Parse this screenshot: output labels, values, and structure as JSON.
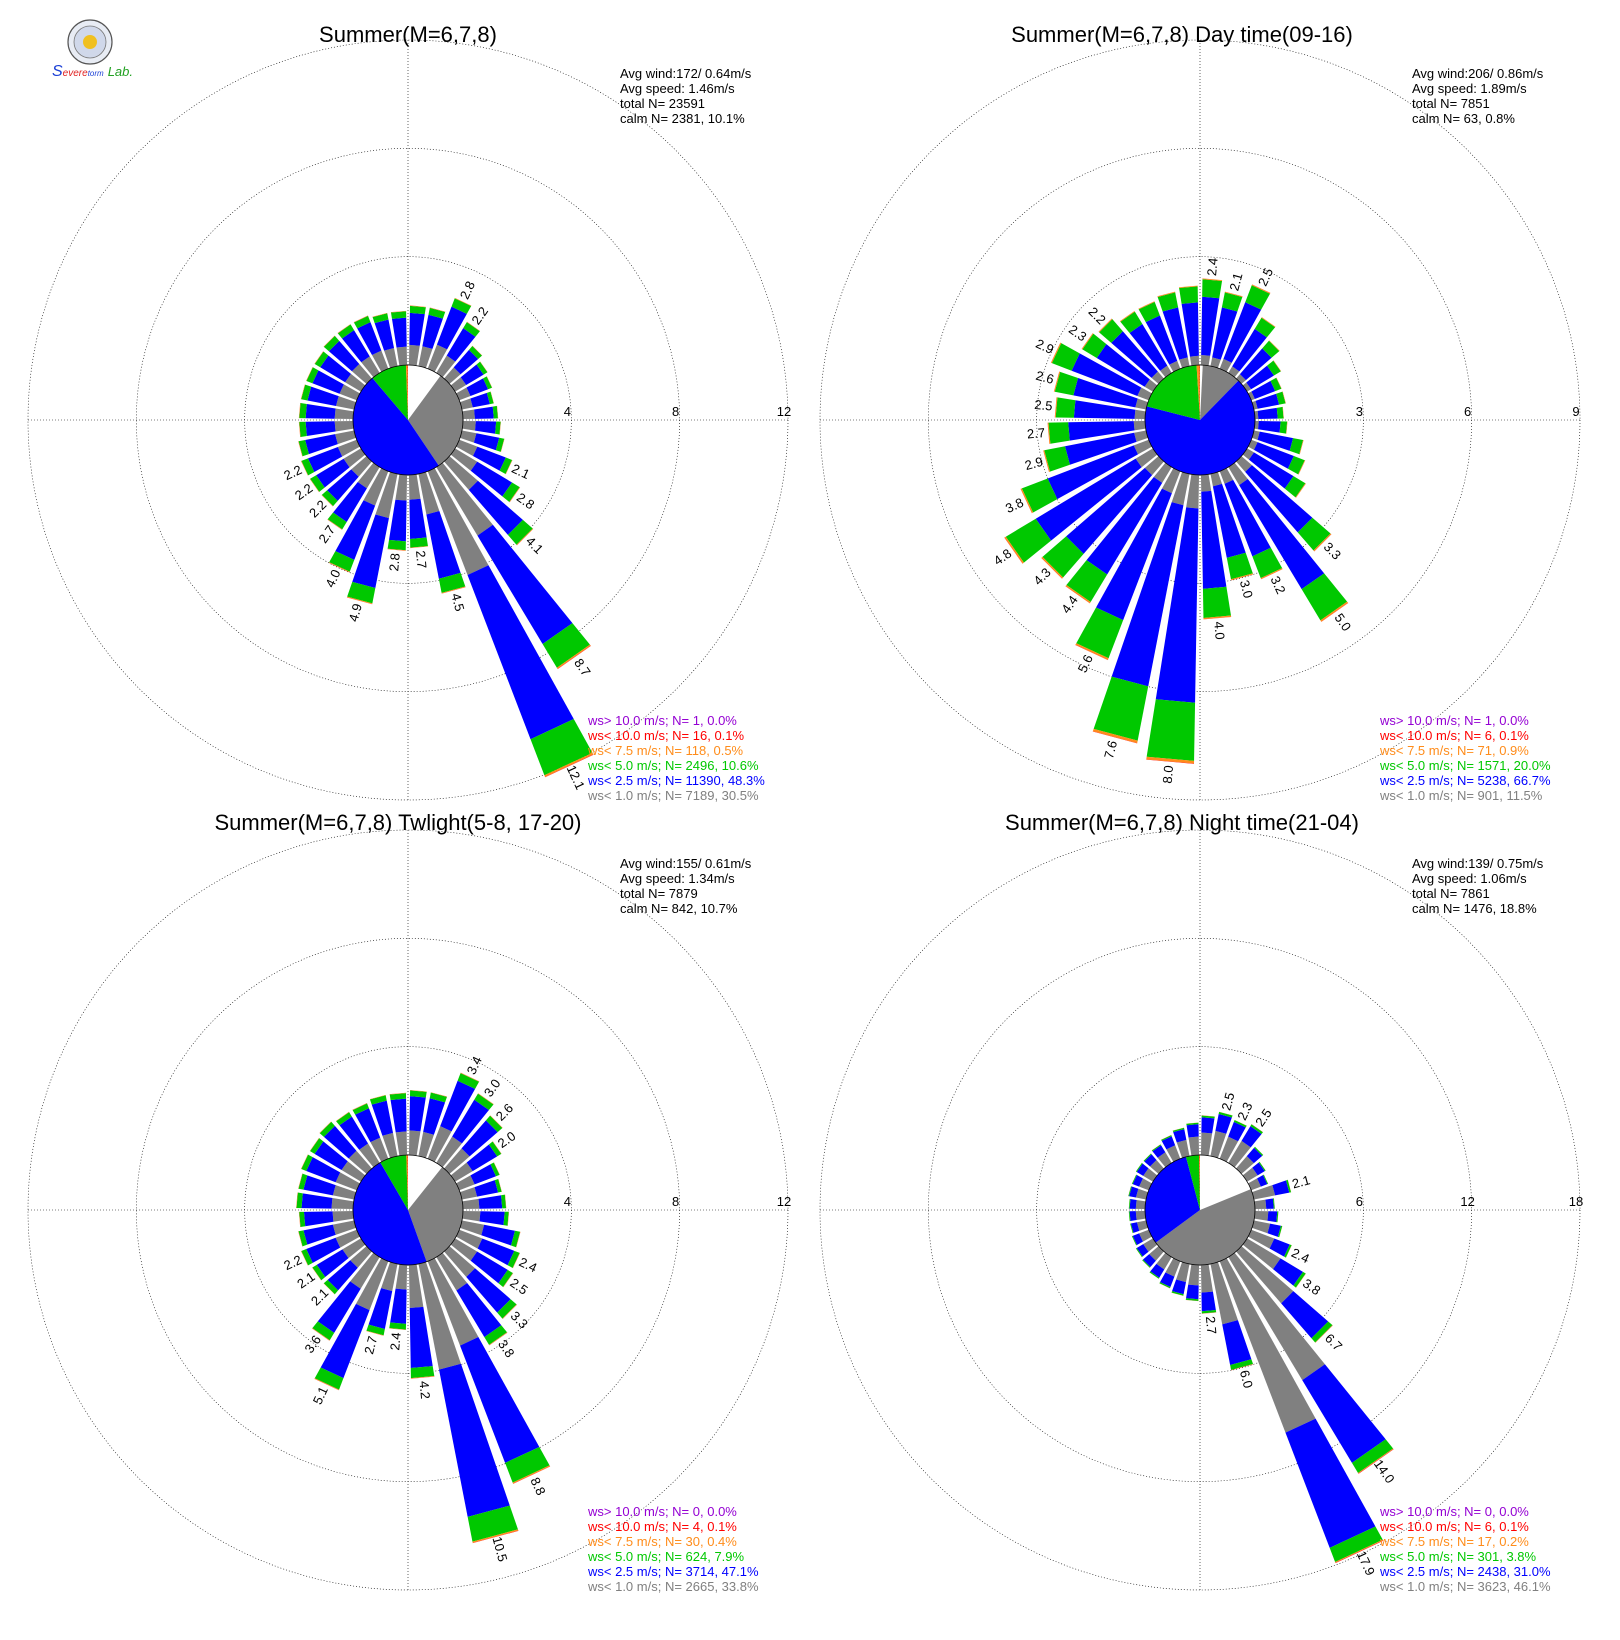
{
  "logo": {
    "parts": [
      {
        "text": "S",
        "color": "#1a3fd6"
      },
      {
        "text": "evere",
        "color": "#e02020"
      },
      {
        "text": "torm",
        "color": "#1a3fd6"
      },
      {
        "text": "Lab.",
        "color": "#20a020"
      }
    ]
  },
  "legend_labels": [
    "ws> 10.0 m/s; N=",
    "ws< 10.0 m/s; N=",
    "ws<  7.5 m/s; N=",
    "ws<  5.0 m/s; N=",
    "ws<  2.5 m/s; N=",
    "ws<  1.0 m/s; N="
  ],
  "speed_bins": [
    {
      "name": "ws< 1.0 m/s",
      "color": "#808080"
    },
    {
      "name": "ws< 2.5 m/s",
      "color": "#0000ff"
    },
    {
      "name": "ws< 5.0 m/s",
      "color": "#00c800"
    },
    {
      "name": "ws< 7.5 m/s",
      "color": "#ff8c1a"
    },
    {
      "name": "ws< 10.0 m/s",
      "color": "#ff0000"
    },
    {
      "name": "ws> 10.0 m/s",
      "color": "#9400d3"
    }
  ],
  "chart_data": [
    {
      "type": "wind-rose",
      "title": "Summer(M=6,7,8)",
      "stats": [
        "Avg wind:172/ 0.64m/s",
        "Avg speed: 1.46m/s",
        "total N=      23591",
        "calm N=   2381,  10.1%"
      ],
      "ring_labels": [
        "4",
        "8",
        "12"
      ],
      "rmax": 12,
      "calm_pie": [
        10.1,
        30.5,
        48.3,
        10.6,
        0.5,
        0.1,
        0.0
      ],
      "sectors": [
        {
          "dir": 5,
          "total": 2.2
        },
        {
          "dir": 15,
          "total": 2.2
        },
        {
          "dir": 25,
          "total": 2.8,
          "label": "2.8"
        },
        {
          "dir": 35,
          "total": 2.2,
          "label": "2.2"
        },
        {
          "dir": 45,
          "total": 1.6
        },
        {
          "dir": 55,
          "total": 1.4
        },
        {
          "dir": 65,
          "total": 1.3
        },
        {
          "dir": 75,
          "total": 1.2
        },
        {
          "dir": 85,
          "total": 1.3
        },
        {
          "dir": 95,
          "total": 1.4
        },
        {
          "dir": 105,
          "total": 1.6
        },
        {
          "dir": 115,
          "total": 2.1,
          "label": "2.1"
        },
        {
          "dir": 125,
          "total": 2.8,
          "label": "2.8"
        },
        {
          "dir": 135,
          "total": 4.1,
          "label": "4.1"
        },
        {
          "dir": 145,
          "total": 8.7,
          "label": "8.7"
        },
        {
          "dir": 155,
          "total": 12.1,
          "label": "12.1"
        },
        {
          "dir": 165,
          "total": 4.5,
          "label": "4.5"
        },
        {
          "dir": 175,
          "total": 2.7,
          "label": "2.7"
        },
        {
          "dir": 185,
          "total": 2.8,
          "label": "2.8"
        },
        {
          "dir": 195,
          "total": 4.9,
          "label": "4.9"
        },
        {
          "dir": 205,
          "total": 4.0,
          "label": "4.0"
        },
        {
          "dir": 215,
          "total": 2.7,
          "label": "2.7"
        },
        {
          "dir": 225,
          "total": 2.2,
          "label": "2.2"
        },
        {
          "dir": 235,
          "total": 2.2,
          "label": "2.2"
        },
        {
          "dir": 245,
          "total": 2.2,
          "label": "2.2"
        },
        {
          "dir": 255,
          "total": 2.1
        },
        {
          "dir": 265,
          "total": 2.0
        },
        {
          "dir": 275,
          "total": 2.0
        },
        {
          "dir": 285,
          "total": 2.0
        },
        {
          "dir": 295,
          "total": 2.0
        },
        {
          "dir": 305,
          "total": 2.0
        },
        {
          "dir": 315,
          "total": 2.1
        },
        {
          "dir": 325,
          "total": 2.1
        },
        {
          "dir": 335,
          "total": 2.1
        },
        {
          "dir": 345,
          "total": 2.0
        },
        {
          "dir": 355,
          "total": 2.0
        }
      ],
      "legend_values": [
        "1,  0.0%",
        "16,  0.1%",
        "118,  0.5%",
        "2496, 10.6%",
        "11390, 48.3%",
        "7189, 30.5%"
      ]
    },
    {
      "type": "wind-rose",
      "title": "Summer(M=6,7,8) Day time(09-16)",
      "stats": [
        "Avg wind:206/ 0.86m/s",
        "Avg speed: 1.89m/s",
        "total N=       7851",
        "calm N=     63,   0.8%"
      ],
      "ring_labels": [
        "3",
        "6",
        "9"
      ],
      "rmax": 9,
      "calm_pie": [
        0.8,
        11.5,
        66.7,
        20.0,
        0.9,
        0.1,
        0.0
      ],
      "sectors": [
        {
          "dir": 5,
          "total": 2.4,
          "label": "2.4"
        },
        {
          "dir": 15,
          "total": 2.1,
          "label": "2.1"
        },
        {
          "dir": 25,
          "total": 2.5,
          "label": "2.5"
        },
        {
          "dir": 35,
          "total": 1.8
        },
        {
          "dir": 45,
          "total": 1.4
        },
        {
          "dir": 55,
          "total": 1.1
        },
        {
          "dir": 65,
          "total": 0.9
        },
        {
          "dir": 75,
          "total": 0.9
        },
        {
          "dir": 85,
          "total": 0.8
        },
        {
          "dir": 95,
          "total": 0.9
        },
        {
          "dir": 105,
          "total": 1.4
        },
        {
          "dir": 115,
          "total": 1.6
        },
        {
          "dir": 125,
          "total": 1.9
        },
        {
          "dir": 135,
          "total": 3.3,
          "label": "3.3"
        },
        {
          "dir": 145,
          "total": 5.0,
          "label": "5.0"
        },
        {
          "dir": 155,
          "total": 3.2,
          "label": "3.2"
        },
        {
          "dir": 165,
          "total": 3.0,
          "label": "3.0"
        },
        {
          "dir": 175,
          "total": 4.0,
          "label": "4.0"
        },
        {
          "dir": 185,
          "total": 8.0,
          "label": "8.0"
        },
        {
          "dir": 195,
          "total": 7.6,
          "label": "7.6"
        },
        {
          "dir": 205,
          "total": 5.6,
          "label": "5.6"
        },
        {
          "dir": 215,
          "total": 4.4,
          "label": "4.4"
        },
        {
          "dir": 225,
          "total": 4.3,
          "label": "4.3"
        },
        {
          "dir": 235,
          "total": 4.8,
          "label": "4.8"
        },
        {
          "dir": 245,
          "total": 3.8,
          "label": "3.8"
        },
        {
          "dir": 255,
          "total": 2.9,
          "label": "2.9"
        },
        {
          "dir": 265,
          "total": 2.7,
          "label": "2.7"
        },
        {
          "dir": 275,
          "total": 2.5,
          "label": "2.5"
        },
        {
          "dir": 285,
          "total": 2.6,
          "label": "2.6"
        },
        {
          "dir": 295,
          "total": 2.9,
          "label": "2.9"
        },
        {
          "dir": 305,
          "total": 2.3,
          "label": "2.3"
        },
        {
          "dir": 315,
          "total": 2.2,
          "label": "2.2"
        },
        {
          "dir": 325,
          "total": 2.0
        },
        {
          "dir": 335,
          "total": 2.0
        },
        {
          "dir": 345,
          "total": 2.1
        },
        {
          "dir": 355,
          "total": 2.2
        }
      ],
      "legend_values": [
        "1,  0.0%",
        "6,  0.1%",
        "71,  0.9%",
        "1571, 20.0%",
        "5238, 66.7%",
        "901, 11.5%"
      ]
    },
    {
      "type": "wind-rose",
      "title": "Summer(M=6,7,8) Twlight(5-8, 17-20)",
      "stats": [
        "Avg wind:155/ 0.61m/s",
        "Avg speed: 1.34m/s",
        "total N=       7879",
        "calm N=    842,  10.7%"
      ],
      "ring_labels": [
        "4",
        "8",
        "12"
      ],
      "rmax": 12,
      "calm_pie": [
        10.7,
        33.8,
        47.1,
        7.9,
        0.4,
        0.1,
        0.0
      ],
      "sectors": [
        {
          "dir": 5,
          "total": 2.4
        },
        {
          "dir": 15,
          "total": 2.4
        },
        {
          "dir": 25,
          "total": 3.4,
          "label": "3.4"
        },
        {
          "dir": 35,
          "total": 3.0,
          "label": "3.0"
        },
        {
          "dir": 45,
          "total": 2.6,
          "label": "2.6"
        },
        {
          "dir": 55,
          "total": 2.0,
          "label": "2.0"
        },
        {
          "dir": 65,
          "total": 1.6
        },
        {
          "dir": 75,
          "total": 1.5
        },
        {
          "dir": 85,
          "total": 1.6
        },
        {
          "dir": 95,
          "total": 1.7
        },
        {
          "dir": 105,
          "total": 2.2
        },
        {
          "dir": 115,
          "total": 2.4,
          "label": "2.4"
        },
        {
          "dir": 125,
          "total": 2.5,
          "label": "2.5"
        },
        {
          "dir": 135,
          "total": 3.3,
          "label": "3.3"
        },
        {
          "dir": 145,
          "total": 3.8,
          "label": "3.8"
        },
        {
          "dir": 155,
          "total": 8.8,
          "label": "8.8"
        },
        {
          "dir": 165,
          "total": 10.5,
          "label": "10.5"
        },
        {
          "dir": 175,
          "total": 4.2,
          "label": "4.2"
        },
        {
          "dir": 185,
          "total": 2.4,
          "label": "2.4"
        },
        {
          "dir": 195,
          "total": 2.7,
          "label": "2.7"
        },
        {
          "dir": 205,
          "total": 5.1,
          "label": "5.1"
        },
        {
          "dir": 215,
          "total": 3.6,
          "label": "3.6"
        },
        {
          "dir": 225,
          "total": 2.1,
          "label": "2.1"
        },
        {
          "dir": 235,
          "total": 2.1,
          "label": "2.1"
        },
        {
          "dir": 245,
          "total": 2.2,
          "label": "2.2"
        },
        {
          "dir": 255,
          "total": 2.1
        },
        {
          "dir": 265,
          "total": 2.0
        },
        {
          "dir": 275,
          "total": 2.1
        },
        {
          "dir": 285,
          "total": 2.1
        },
        {
          "dir": 295,
          "total": 2.2
        },
        {
          "dir": 305,
          "total": 2.2
        },
        {
          "dir": 315,
          "total": 2.3
        },
        {
          "dir": 325,
          "total": 2.2
        },
        {
          "dir": 335,
          "total": 2.2
        },
        {
          "dir": 345,
          "total": 2.3
        },
        {
          "dir": 355,
          "total": 2.3
        }
      ],
      "legend_values": [
        "0,  0.0%",
        "4,  0.1%",
        "30,  0.4%",
        "624,  7.9%",
        "3714, 47.1%",
        "2665, 33.8%"
      ]
    },
    {
      "type": "wind-rose",
      "title": "Summer(M=6,7,8) Night time(21-04)",
      "stats": [
        "Avg wind:139/ 0.75m/s",
        "Avg speed: 1.06m/s",
        "total N=       7861",
        "calm N=   1476,  18.8%"
      ],
      "ring_labels": [
        "6",
        "12",
        "18"
      ],
      "rmax": 18,
      "calm_pie": [
        18.8,
        46.1,
        31.0,
        3.8,
        0.2,
        0.1,
        0.0
      ],
      "sectors": [
        {
          "dir": 5,
          "total": 2.2
        },
        {
          "dir": 15,
          "total": 2.5,
          "label": "2.5"
        },
        {
          "dir": 25,
          "total": 2.3,
          "label": "2.3"
        },
        {
          "dir": 35,
          "total": 2.5,
          "label": "2.5"
        },
        {
          "dir": 45,
          "total": 1.6
        },
        {
          "dir": 55,
          "total": 1.2
        },
        {
          "dir": 65,
          "total": 1.0
        },
        {
          "dir": 75,
          "total": 2.1,
          "label": "2.1"
        },
        {
          "dir": 85,
          "total": 1.1
        },
        {
          "dir": 95,
          "total": 1.3
        },
        {
          "dir": 105,
          "total": 1.6
        },
        {
          "dir": 115,
          "total": 2.4,
          "label": "2.4"
        },
        {
          "dir": 125,
          "total": 3.8,
          "label": "3.8"
        },
        {
          "dir": 135,
          "total": 6.7,
          "label": "6.7"
        },
        {
          "dir": 145,
          "total": 14.0,
          "label": "14.0"
        },
        {
          "dir": 155,
          "total": 17.9,
          "label": "17.9"
        },
        {
          "dir": 165,
          "total": 6.0,
          "label": "6.0"
        },
        {
          "dir": 175,
          "total": 2.7,
          "label": "2.7"
        },
        {
          "dir": 185,
          "total": 2.0
        },
        {
          "dir": 195,
          "total": 1.8
        },
        {
          "dir": 205,
          "total": 1.6
        },
        {
          "dir": 215,
          "total": 1.4
        },
        {
          "dir": 225,
          "total": 1.2
        },
        {
          "dir": 235,
          "total": 1.1
        },
        {
          "dir": 245,
          "total": 1.0
        },
        {
          "dir": 255,
          "total": 0.9
        },
        {
          "dir": 265,
          "total": 0.9
        },
        {
          "dir": 275,
          "total": 0.9
        },
        {
          "dir": 285,
          "total": 1.0
        },
        {
          "dir": 295,
          "total": 1.0
        },
        {
          "dir": 305,
          "total": 1.1
        },
        {
          "dir": 315,
          "total": 1.1
        },
        {
          "dir": 325,
          "total": 1.2
        },
        {
          "dir": 335,
          "total": 1.4
        },
        {
          "dir": 345,
          "total": 1.6
        },
        {
          "dir": 355,
          "total": 1.8
        }
      ],
      "legend_values": [
        "0,  0.0%",
        "6,  0.1%",
        "17,  0.2%",
        "301,  3.8%",
        "2438, 31.0%",
        "3623, 46.1%"
      ]
    }
  ]
}
